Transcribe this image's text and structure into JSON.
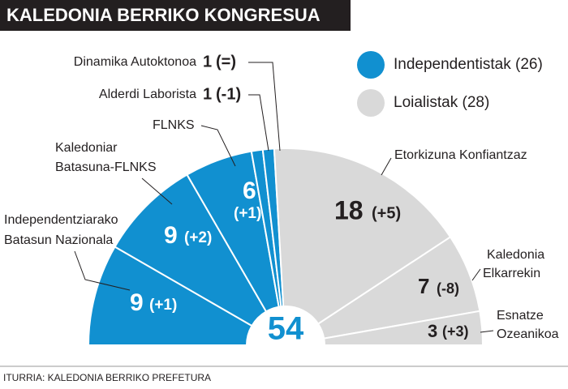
{
  "chart_data": {
    "type": "pie",
    "title": "KALEDONIA BERRIKO KONGRESUA",
    "categories": [
      [
        "Independentziarako",
        "Batasun Nazionala"
      ],
      [
        "Kaledoniar",
        "Batasuna-FLNKS"
      ],
      [
        "FLNKS"
      ],
      [
        "Alderdi Laborista"
      ],
      [
        "Dinamika Autoktonoa"
      ],
      [
        "Etorkizuna Konfiantzaz"
      ],
      [
        "Kaledonia",
        "Elkarrekin"
      ],
      [
        "Esnatze",
        "Ozeanikoa"
      ]
    ],
    "values": [
      9,
      9,
      6,
      1,
      1,
      18,
      7,
      3
    ],
    "changes": [
      "(+1)",
      "(+2)",
      "(+1)",
      "(-1)",
      "(=)",
      "(+5)",
      "(-8)",
      "(+3)"
    ],
    "colors": [
      "#1190d0",
      "#1190d0",
      "#1190d0",
      "#1190d0",
      "#1190d0",
      "#d9d9d9",
      "#d9d9d9",
      "#d9d9d9"
    ],
    "legend": [
      {
        "name": "Independentistak (26)",
        "color": "#1190d0"
      },
      {
        "name": "Loialistak (28)",
        "color": "#d9d9d9"
      }
    ],
    "total": 54,
    "source": "ITURRIA: KALEDONIA BERRIKO PREFETURA"
  }
}
